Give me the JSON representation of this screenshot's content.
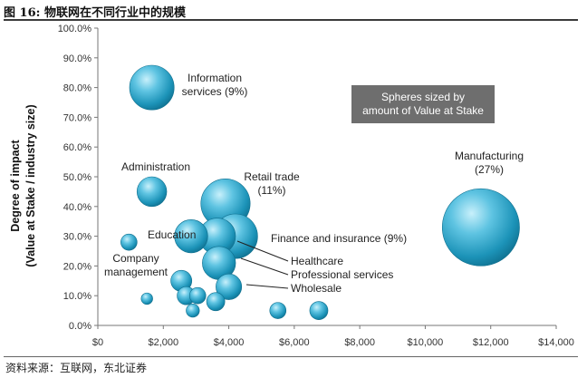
{
  "figure": {
    "title": "图  16:  物联网在不同行业中的规模",
    "source": "资料来源：互联网，东北证券"
  },
  "chart_data": {
    "type": "scatter",
    "variant": "bubble",
    "ylabel_line1": "Degree of impact",
    "ylabel_line2": "(Value at Stake / industry size)",
    "xlim": [
      0,
      14000
    ],
    "ylim": [
      0,
      100
    ],
    "x_ticks": [
      0,
      2000,
      4000,
      6000,
      8000,
      10000,
      12000,
      14000
    ],
    "x_tick_labels": [
      "$0",
      "$2,000",
      "$4,000",
      "$6,000",
      "$8,000",
      "$10,000",
      "$12,000",
      "$14,000"
    ],
    "y_ticks": [
      0,
      10,
      20,
      30,
      40,
      50,
      60,
      70,
      80,
      90,
      100
    ],
    "y_tick_labels": [
      "0.0%",
      "10.0%",
      "20.0%",
      "30.0%",
      "40.0%",
      "50.0%",
      "60.0%",
      "70.0%",
      "80.0%",
      "90.0%",
      "100.0%"
    ],
    "grid": false,
    "legend_box": "Spheres sized by\namount of Value at Stake",
    "bubble_color": "#2aa6c9",
    "points": [
      {
        "x": 11700,
        "y": 33,
        "size": 27,
        "label": "Manufacturing\n(27%)"
      },
      {
        "x": 1650,
        "y": 80,
        "size": 9,
        "label": "Information\nservices (9%)"
      },
      {
        "x": 3900,
        "y": 41,
        "size": 11,
        "label": "Retail trade\n(11%)"
      },
      {
        "x": 4200,
        "y": 30,
        "size": 9,
        "label": "Finance and insurance (9%)"
      },
      {
        "x": 1650,
        "y": 45,
        "size": 4,
        "label": "Administration"
      },
      {
        "x": 2850,
        "y": 30,
        "size": 5,
        "label": "Education"
      },
      {
        "x": 3650,
        "y": 30,
        "size": 6,
        "label": "Healthcare"
      },
      {
        "x": 3700,
        "y": 21,
        "size": 5,
        "label": "Professional services"
      },
      {
        "x": 4000,
        "y": 13,
        "size": 3,
        "label": "Wholesale"
      },
      {
        "x": 950,
        "y": 28,
        "size": 1.2,
        "label": "Company\nmanagement"
      },
      {
        "x": 2550,
        "y": 15,
        "size": 2,
        "label": ""
      },
      {
        "x": 2700,
        "y": 10,
        "size": 1.5,
        "label": ""
      },
      {
        "x": 3050,
        "y": 10,
        "size": 1.2,
        "label": ""
      },
      {
        "x": 3600,
        "y": 8,
        "size": 1.5,
        "label": ""
      },
      {
        "x": 2900,
        "y": 5,
        "size": 0.8,
        "label": ""
      },
      {
        "x": 1500,
        "y": 9,
        "size": 0.6,
        "label": ""
      },
      {
        "x": 5500,
        "y": 5,
        "size": 1.2,
        "label": ""
      },
      {
        "x": 6750,
        "y": 5,
        "size": 1.5,
        "label": ""
      }
    ]
  }
}
